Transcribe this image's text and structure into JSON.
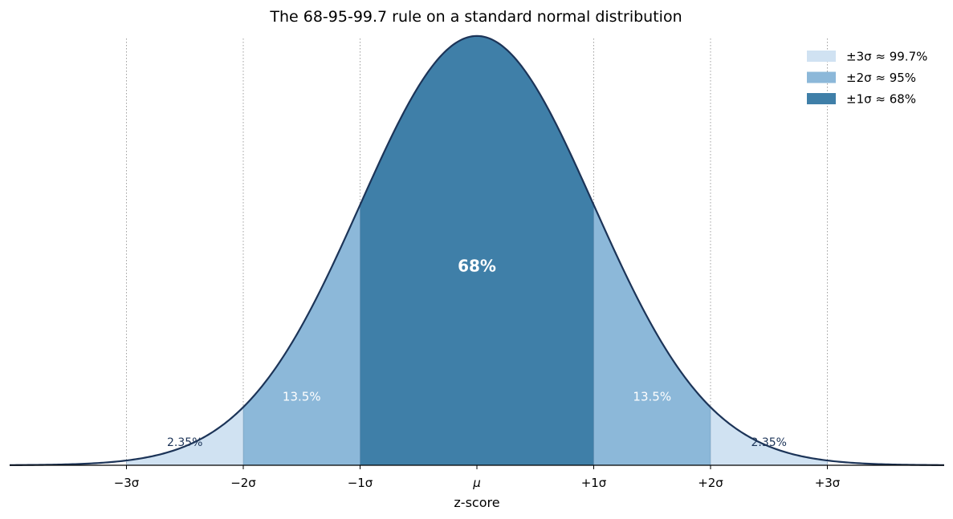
{
  "chart_data": {
    "type": "area",
    "title": "The 68-95-99.7 rule on a standard normal distribution",
    "xlabel": "z-score",
    "ylabel": "",
    "xlim": [
      -4,
      4
    ],
    "ylim": [
      0,
      0.41
    ],
    "grid": "vertical dotted lines at integer z",
    "legend_position": "top-right",
    "curve": {
      "function": "standard normal pdf",
      "mean": 0,
      "sd": 1,
      "color": "#1c3458"
    },
    "x_ticks": [
      {
        "z": -3,
        "label": "−3σ"
      },
      {
        "z": -2,
        "label": "−2σ"
      },
      {
        "z": -1,
        "label": "−1σ"
      },
      {
        "z": 0,
        "label": "μ"
      },
      {
        "z": 1,
        "label": "+1σ"
      },
      {
        "z": 2,
        "label": "+2σ"
      },
      {
        "z": 3,
        "label": "+3σ"
      }
    ],
    "bands": [
      {
        "name": "±3σ ≈ 99.7%",
        "from": -3,
        "to": 3,
        "color": "#d0e2f2"
      },
      {
        "name": "±2σ ≈ 95%",
        "from": -2,
        "to": 2,
        "color": "#8cb8d9"
      },
      {
        "name": "±1σ ≈ 68%",
        "from": -1,
        "to": 1,
        "color": "#3f7fa8"
      }
    ],
    "region_labels": [
      {
        "text": "2.35%",
        "z": -2.5,
        "y": 0.018,
        "color": "#1c3458",
        "weight": "normal",
        "size": 14
      },
      {
        "text": "13.5%",
        "z": -1.5,
        "y": 0.06,
        "color": "#ffffff",
        "weight": "normal",
        "size": 15
      },
      {
        "text": "68%",
        "z": 0,
        "y": 0.18,
        "color": "#ffffff",
        "weight": "bold",
        "size": 20
      },
      {
        "text": "13.5%",
        "z": 1.5,
        "y": 0.06,
        "color": "#ffffff",
        "weight": "normal",
        "size": 15
      },
      {
        "text": "2.35%",
        "z": 2.5,
        "y": 0.018,
        "color": "#1c3458",
        "weight": "normal",
        "size": 14
      }
    ]
  }
}
